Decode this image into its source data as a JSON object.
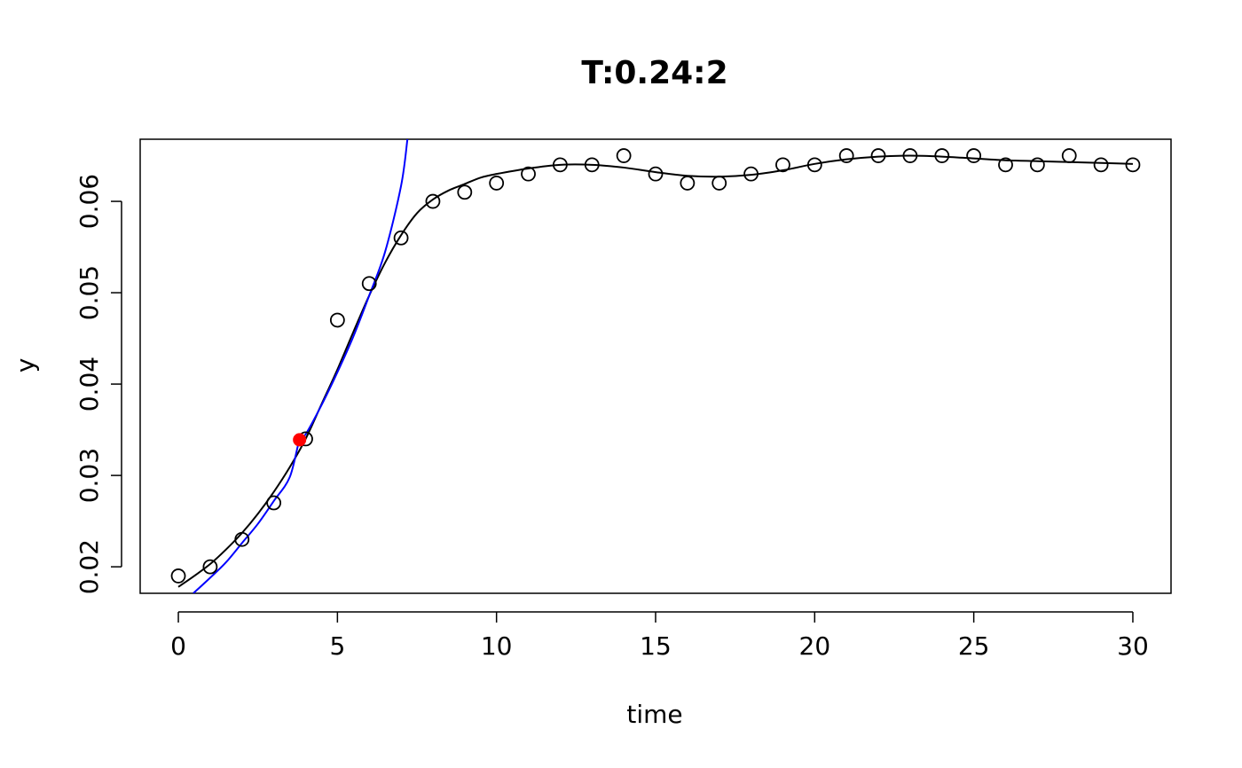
{
  "chart_data": {
    "type": "scatter",
    "title": "T:0.24:2",
    "xlabel": "time",
    "ylabel": "y",
    "xlim": [
      -1.2,
      31.2
    ],
    "ylim": [
      0.0171,
      0.0668
    ],
    "xticks": [
      0,
      5,
      10,
      15,
      20,
      25,
      30
    ],
    "yticks": [
      0.02,
      0.03,
      0.04,
      0.05,
      0.06
    ],
    "xtick_labels": [
      "0",
      "5",
      "10",
      "15",
      "20",
      "25",
      "30"
    ],
    "ytick_labels": [
      "0.02",
      "0.03",
      "0.04",
      "0.05",
      "0.06"
    ],
    "grid": false,
    "legend": "none",
    "series": [
      {
        "kind": "points",
        "marker": "open-circle",
        "color": "#000000",
        "x": [
          0,
          1,
          2,
          3,
          4,
          5,
          6,
          7,
          8,
          9,
          10,
          11,
          12,
          13,
          14,
          15,
          16,
          17,
          18,
          19,
          20,
          21,
          22,
          23,
          24,
          25,
          26,
          27,
          28,
          29,
          30
        ],
        "y": [
          0.019,
          0.02,
          0.023,
          0.027,
          0.034,
          0.047,
          0.051,
          0.056,
          0.06,
          0.061,
          0.062,
          0.063,
          0.064,
          0.064,
          0.065,
          0.063,
          0.062,
          0.062,
          0.063,
          0.064,
          0.064,
          0.065,
          0.065,
          0.065,
          0.065,
          0.065,
          0.064,
          0.064,
          0.065,
          0.064,
          0.064
        ]
      },
      {
        "kind": "line",
        "style": "smooth-fit",
        "color": "#000000",
        "x": [
          0,
          0.5,
          1,
          1.5,
          2,
          2.5,
          3,
          3.5,
          4,
          4.5,
          5,
          5.5,
          6,
          6.5,
          7,
          7.5,
          8,
          8.5,
          9,
          9.5,
          10,
          11,
          12,
          13,
          14,
          15,
          16,
          17,
          18,
          19,
          20,
          21,
          22,
          23,
          24,
          25,
          26,
          27,
          28,
          29,
          30
        ],
        "y": [
          0.0178,
          0.019,
          0.0203,
          0.0219,
          0.0237,
          0.0258,
          0.0282,
          0.0309,
          0.034,
          0.0378,
          0.0416,
          0.0457,
          0.0497,
          0.0533,
          0.0563,
          0.0587,
          0.0602,
          0.0612,
          0.0619,
          0.0626,
          0.063,
          0.0636,
          0.064,
          0.064,
          0.0637,
          0.0632,
          0.0628,
          0.0627,
          0.0629,
          0.0634,
          0.0641,
          0.0646,
          0.0649,
          0.065,
          0.0649,
          0.0647,
          0.0645,
          0.0644,
          0.0643,
          0.0642,
          0.0641
        ]
      },
      {
        "kind": "line",
        "style": "exponential-tangent",
        "color": "#0000ff",
        "x": [
          0.47,
          1,
          1.5,
          2,
          2.5,
          3,
          3.5,
          3.81,
          4,
          4.5,
          5,
          5.5,
          6,
          6.5,
          7,
          7.2
        ],
        "y": [
          0.0171,
          0.0188,
          0.0205,
          0.0226,
          0.0247,
          0.0272,
          0.0298,
          0.0339,
          0.0345,
          0.0377,
          0.0413,
          0.0452,
          0.0497,
          0.0545,
          0.0617,
          0.0668
        ]
      },
      {
        "kind": "points",
        "marker": "filled-circle",
        "color": "#ff0000",
        "x": [
          3.81
        ],
        "y": [
          0.0339
        ]
      }
    ]
  }
}
